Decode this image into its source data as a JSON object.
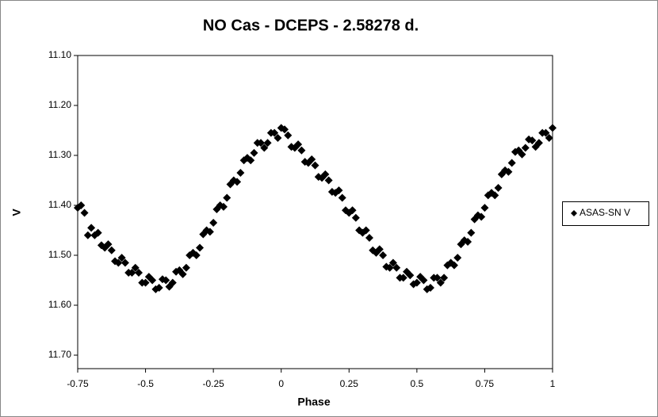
{
  "chart_data": {
    "type": "scatter",
    "title": "NO Cas - DCEPS - 2.58278 d.",
    "xlabel": "Phase",
    "ylabel": "V",
    "xlim": [
      -0.75,
      1
    ],
    "xticks": [
      -0.75,
      -0.5,
      -0.25,
      0,
      0.25,
      0.5,
      0.75,
      1
    ],
    "ylim": [
      11.727,
      11.1
    ],
    "yticks": [
      {
        "value": 11.1,
        "label": "11.10"
      },
      {
        "value": 11.2,
        "label": "11.20"
      },
      {
        "value": 11.3,
        "label": "11.30"
      },
      {
        "value": 11.4,
        "label": "11.40"
      },
      {
        "value": 11.5,
        "label": "11.50"
      },
      {
        "value": 11.6,
        "label": "11.60"
      },
      {
        "value": 11.7,
        "label": "11.70"
      }
    ],
    "legend": "right",
    "marker": "diamond",
    "x": [
      -0.75,
      -0.725,
      -0.7,
      -0.675,
      -0.65,
      -0.625,
      -0.6,
      -0.575,
      -0.55,
      -0.525,
      -0.5,
      -0.475,
      -0.45,
      -0.425,
      -0.4,
      -0.375,
      -0.35,
      -0.325,
      -0.3,
      -0.275,
      -0.25,
      -0.225,
      -0.2,
      -0.175,
      -0.15,
      -0.125,
      -0.1,
      -0.075,
      -0.05,
      -0.025,
      0,
      0.025,
      0.05,
      0.075,
      0.1,
      0.125,
      0.15,
      0.175,
      0.2,
      0.225,
      0.25,
      0.275,
      0.3,
      0.325,
      0.35,
      0.375,
      0.4,
      0.425,
      0.45,
      0.475,
      0.5,
      0.525,
      0.55,
      0.575,
      0.6,
      0.625,
      0.65,
      0.675,
      0.7,
      0.725,
      0.75,
      0.775,
      0.8,
      0.825,
      0.85,
      0.875,
      0.9,
      0.925,
      0.95,
      0.975,
      1,
      -0.7375,
      -0.7125,
      -0.6875,
      -0.6625,
      -0.6375,
      -0.6125,
      -0.5875,
      -0.5625,
      -0.5375,
      -0.5125,
      -0.4875,
      -0.4625,
      -0.4375,
      -0.4125,
      -0.3875,
      -0.3625,
      -0.3375,
      -0.3125,
      -0.2875,
      -0.2625,
      -0.2375,
      -0.2125,
      -0.1875,
      -0.1625,
      -0.1375,
      -0.1125,
      -0.0875,
      -0.0625,
      -0.0375,
      -0.0125,
      0.0125,
      0.0375,
      0.0625,
      0.0875,
      0.1125,
      0.1375,
      0.1625,
      0.1875,
      0.2125,
      0.2375,
      0.2625,
      0.2875,
      0.3125,
      0.3375,
      0.3625,
      0.3875,
      0.4125,
      0.4375,
      0.4625,
      0.4875,
      0.5125,
      0.5375,
      0.5625,
      0.5875,
      0.6125,
      0.6375,
      0.6625,
      0.6875,
      0.7125,
      0.7375,
      0.7625,
      0.7875,
      0.8125,
      0.8375,
      0.8625,
      0.8875,
      0.9125,
      0.9375,
      0.9625,
      0.9875
    ],
    "series": [
      {
        "name": "ASAS-SN V",
        "color": "#000000",
        "values": [
          11.405,
          11.415,
          11.445,
          11.455,
          11.485,
          11.49,
          11.515,
          11.515,
          11.535,
          11.535,
          11.555,
          11.55,
          11.565,
          11.55,
          11.555,
          11.53,
          11.525,
          11.495,
          11.485,
          11.45,
          11.435,
          11.4,
          11.385,
          11.35,
          11.335,
          11.305,
          11.295,
          11.275,
          11.275,
          11.255,
          11.245,
          11.26,
          11.285,
          11.29,
          11.315,
          11.32,
          11.345,
          11.35,
          11.375,
          11.385,
          11.415,
          11.425,
          11.455,
          11.465,
          11.495,
          11.5,
          11.525,
          11.525,
          11.545,
          11.54,
          11.555,
          11.55,
          11.565,
          11.545,
          11.545,
          11.515,
          11.505,
          11.47,
          11.455,
          11.42,
          11.405,
          11.375,
          11.365,
          11.33,
          11.315,
          11.29,
          11.285,
          11.27,
          11.275,
          11.255,
          11.245,
          11.4,
          11.46,
          11.46,
          11.48,
          11.478,
          11.512,
          11.505,
          11.535,
          11.525,
          11.555,
          11.543,
          11.568,
          11.548,
          11.563,
          11.533,
          11.538,
          11.5,
          11.5,
          11.458,
          11.453,
          11.408,
          11.403,
          11.358,
          11.353,
          11.31,
          11.31,
          11.275,
          11.285,
          11.255,
          11.265,
          11.248,
          11.283,
          11.278,
          11.313,
          11.308,
          11.343,
          11.338,
          11.373,
          11.37,
          11.41,
          11.41,
          11.45,
          11.45,
          11.49,
          11.488,
          11.523,
          11.515,
          11.545,
          11.533,
          11.558,
          11.543,
          11.568,
          11.545,
          11.555,
          11.52,
          11.52,
          11.478,
          11.473,
          11.428,
          11.423,
          11.38,
          11.38,
          11.338,
          11.333,
          11.293,
          11.298,
          11.268,
          11.283,
          11.255,
          11.265
        ]
      }
    ]
  }
}
